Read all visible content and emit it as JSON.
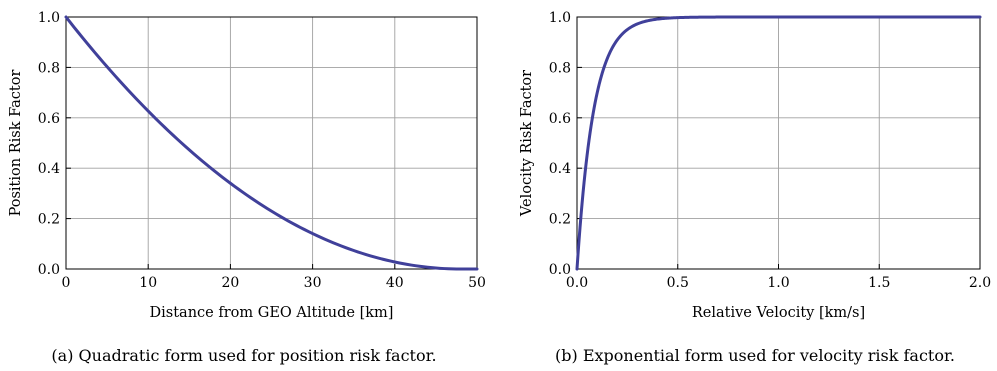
{
  "chart_data": [
    {
      "type": "line",
      "title": "",
      "xlabel": "Distance from GEO Altitude [km]",
      "ylabel": "Position Risk Factor",
      "xlim": [
        0,
        50
      ],
      "ylim": [
        0,
        1
      ],
      "xticks": [
        "0",
        "10",
        "20",
        "30",
        "40",
        "50"
      ],
      "yticks": [
        "0.0",
        "0.2",
        "0.4",
        "0.6",
        "0.8",
        "1.0"
      ],
      "grid": true,
      "caption": "(a)  Quadratic form used for position risk factor.",
      "series": [
        {
          "color": "#40409a",
          "x": [
            0,
            5,
            10,
            15,
            20,
            25,
            30,
            35,
            40,
            45,
            48,
            50
          ],
          "y": [
            1.0,
            0.8,
            0.627,
            0.474,
            0.342,
            0.231,
            0.141,
            0.072,
            0.025,
            0.004,
            0.0,
            0.0
          ]
        }
      ]
    },
    {
      "type": "line",
      "title": "",
      "xlabel": "Relative Velocity [km/s]",
      "ylabel": "Velocity Risk Factor",
      "xlim": [
        0,
        2
      ],
      "ylim": [
        0,
        1
      ],
      "xticks": [
        "0.0",
        "0.5",
        "1.0",
        "1.5",
        "2.0"
      ],
      "yticks": [
        "0.0",
        "0.2",
        "0.4",
        "0.6",
        "0.8",
        "1.0"
      ],
      "grid": true,
      "caption": "(b)  Exponential form used for velocity risk factor.",
      "series": [
        {
          "color": "#40409a",
          "x": [
            0,
            0.025,
            0.05,
            0.075,
            0.1,
            0.125,
            0.15,
            0.2,
            0.25,
            0.3,
            0.35,
            0.4,
            0.5,
            0.6,
            0.8,
            1.0,
            1.5,
            2.0
          ],
          "y": [
            0,
            0.259,
            0.451,
            0.593,
            0.699,
            0.777,
            0.835,
            0.909,
            0.95,
            0.973,
            0.985,
            0.992,
            0.9975,
            0.9993,
            1.0,
            1.0,
            1.0,
            1.0
          ]
        }
      ]
    }
  ]
}
